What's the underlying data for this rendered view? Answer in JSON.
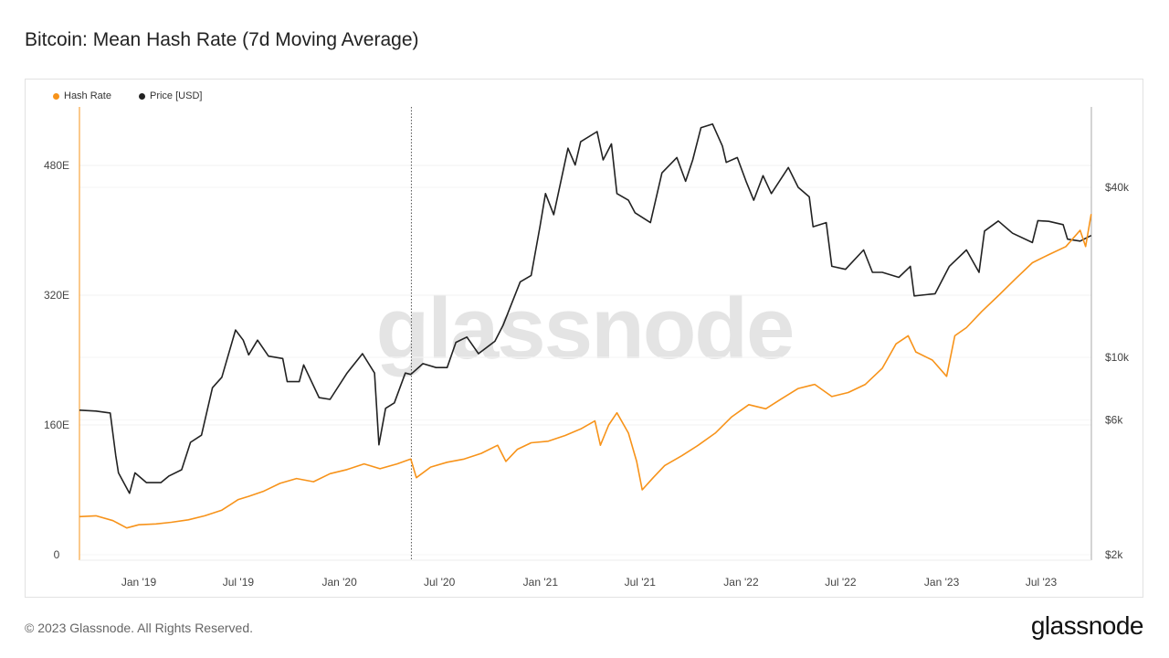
{
  "title": "Bitcoin: Mean Hash Rate (7d Moving Average)",
  "footer": "© 2023 Glassnode. All Rights Reserved.",
  "logo": "glassnode",
  "watermark": "glassnode",
  "chart_data": {
    "type": "line",
    "title": "Bitcoin: Mean Hash Rate (7d Moving Average)",
    "legend_position": "top-left",
    "grid": true,
    "x_range": [
      "2018-09-14",
      "2023-09-30"
    ],
    "x_ticks": [
      {
        "date": "2019-01-01",
        "label": "Jan '19"
      },
      {
        "date": "2019-07-01",
        "label": "Jul '19"
      },
      {
        "date": "2020-01-01",
        "label": "Jan '20"
      },
      {
        "date": "2020-07-01",
        "label": "Jul '20"
      },
      {
        "date": "2021-01-01",
        "label": "Jan '21"
      },
      {
        "date": "2021-07-01",
        "label": "Jul '21"
      },
      {
        "date": "2022-01-01",
        "label": "Jan '22"
      },
      {
        "date": "2022-07-01",
        "label": "Jul '22"
      },
      {
        "date": "2023-01-01",
        "label": "Jan '23"
      },
      {
        "date": "2023-07-01",
        "label": "Jul '23"
      }
    ],
    "marker_line_date": "2020-05-11",
    "left_axis": {
      "scale": "linear",
      "ticks": [
        {
          "v": 0,
          "label": "0"
        },
        {
          "v": 160,
          "label": "160E"
        },
        {
          "v": 320,
          "label": "320E"
        },
        {
          "v": 480,
          "label": "480E"
        }
      ]
    },
    "right_axis": {
      "scale": "log",
      "ticks": [
        {
          "v": 2000,
          "label": "$2k"
        },
        {
          "v": 6000,
          "label": "$6k"
        },
        {
          "v": 10000,
          "label": "$10k"
        },
        {
          "v": 40000,
          "label": "$40k"
        }
      ]
    },
    "series": [
      {
        "name": "Hash Rate",
        "color": "#f7931a",
        "axis": "left",
        "points": [
          [
            "2018-09-15",
            47
          ],
          [
            "2018-10-15",
            48
          ],
          [
            "2018-11-15",
            42
          ],
          [
            "2018-12-10",
            33
          ],
          [
            "2019-01-01",
            37
          ],
          [
            "2019-02-01",
            38
          ],
          [
            "2019-03-01",
            40
          ],
          [
            "2019-04-01",
            43
          ],
          [
            "2019-05-01",
            48
          ],
          [
            "2019-06-01",
            55
          ],
          [
            "2019-07-01",
            68
          ],
          [
            "2019-07-20",
            72
          ],
          [
            "2019-08-15",
            78
          ],
          [
            "2019-09-15",
            88
          ],
          [
            "2019-10-15",
            94
          ],
          [
            "2019-11-15",
            90
          ],
          [
            "2019-12-15",
            100
          ],
          [
            "2020-01-15",
            105
          ],
          [
            "2020-02-15",
            112
          ],
          [
            "2020-03-15",
            106
          ],
          [
            "2020-04-15",
            112
          ],
          [
            "2020-05-10",
            118
          ],
          [
            "2020-05-20",
            95
          ],
          [
            "2020-06-15",
            108
          ],
          [
            "2020-07-15",
            114
          ],
          [
            "2020-08-15",
            118
          ],
          [
            "2020-09-15",
            125
          ],
          [
            "2020-10-15",
            135
          ],
          [
            "2020-10-30",
            115
          ],
          [
            "2020-11-20",
            130
          ],
          [
            "2020-12-15",
            138
          ],
          [
            "2021-01-15",
            140
          ],
          [
            "2021-02-15",
            147
          ],
          [
            "2021-03-15",
            155
          ],
          [
            "2021-04-10",
            165
          ],
          [
            "2021-04-20",
            135
          ],
          [
            "2021-05-05",
            160
          ],
          [
            "2021-05-20",
            175
          ],
          [
            "2021-06-10",
            150
          ],
          [
            "2021-06-25",
            115
          ],
          [
            "2021-07-05",
            80
          ],
          [
            "2021-07-25",
            95
          ],
          [
            "2021-08-15",
            110
          ],
          [
            "2021-09-15",
            122
          ],
          [
            "2021-10-15",
            135
          ],
          [
            "2021-11-15",
            150
          ],
          [
            "2021-12-15",
            170
          ],
          [
            "2022-01-15",
            185
          ],
          [
            "2022-02-15",
            180
          ],
          [
            "2022-03-15",
            192
          ],
          [
            "2022-04-15",
            205
          ],
          [
            "2022-05-15",
            210
          ],
          [
            "2022-06-15",
            195
          ],
          [
            "2022-07-15",
            200
          ],
          [
            "2022-08-15",
            210
          ],
          [
            "2022-09-15",
            230
          ],
          [
            "2022-10-10",
            260
          ],
          [
            "2022-11-01",
            270
          ],
          [
            "2022-11-15",
            250
          ],
          [
            "2022-12-15",
            240
          ],
          [
            "2023-01-10",
            220
          ],
          [
            "2023-01-25",
            270
          ],
          [
            "2023-02-15",
            280
          ],
          [
            "2023-03-15",
            300
          ],
          [
            "2023-04-15",
            320
          ],
          [
            "2023-05-15",
            340
          ],
          [
            "2023-06-15",
            360
          ],
          [
            "2023-07-15",
            370
          ],
          [
            "2023-08-15",
            380
          ],
          [
            "2023-09-10",
            400
          ],
          [
            "2023-09-20",
            380
          ],
          [
            "2023-09-30",
            420
          ]
        ]
      },
      {
        "name": "Price [USD]",
        "color": "#222222",
        "axis": "right",
        "points": [
          [
            "2018-09-15",
            6500
          ],
          [
            "2018-10-15",
            6450
          ],
          [
            "2018-11-10",
            6350
          ],
          [
            "2018-11-20",
            4500
          ],
          [
            "2018-11-25",
            3900
          ],
          [
            "2018-12-15",
            3300
          ],
          [
            "2018-12-25",
            3900
          ],
          [
            "2019-01-15",
            3600
          ],
          [
            "2019-02-10",
            3600
          ],
          [
            "2019-02-25",
            3800
          ],
          [
            "2019-03-20",
            4000
          ],
          [
            "2019-04-05",
            5000
          ],
          [
            "2019-04-25",
            5300
          ],
          [
            "2019-05-15",
            7800
          ],
          [
            "2019-06-01",
            8500
          ],
          [
            "2019-06-26",
            12500
          ],
          [
            "2019-07-10",
            11500
          ],
          [
            "2019-07-20",
            10200
          ],
          [
            "2019-08-05",
            11500
          ],
          [
            "2019-08-25",
            10100
          ],
          [
            "2019-09-20",
            9900
          ],
          [
            "2019-09-28",
            8200
          ],
          [
            "2019-10-20",
            8200
          ],
          [
            "2019-10-28",
            9400
          ],
          [
            "2019-11-25",
            7200
          ],
          [
            "2019-12-15",
            7100
          ],
          [
            "2020-01-15",
            8800
          ],
          [
            "2020-02-12",
            10300
          ],
          [
            "2020-03-05",
            8800
          ],
          [
            "2020-03-13",
            4900
          ],
          [
            "2020-03-25",
            6600
          ],
          [
            "2020-04-10",
            6900
          ],
          [
            "2020-04-30",
            8800
          ],
          [
            "2020-05-10",
            8700
          ],
          [
            "2020-06-01",
            9500
          ],
          [
            "2020-06-25",
            9200
          ],
          [
            "2020-07-15",
            9200
          ],
          [
            "2020-07-31",
            11300
          ],
          [
            "2020-08-20",
            11800
          ],
          [
            "2020-09-10",
            10300
          ],
          [
            "2020-10-10",
            11400
          ],
          [
            "2020-10-25",
            13000
          ],
          [
            "2020-11-25",
            18500
          ],
          [
            "2020-12-15",
            19500
          ],
          [
            "2020-12-31",
            29000
          ],
          [
            "2021-01-10",
            38000
          ],
          [
            "2021-01-25",
            32000
          ],
          [
            "2021-02-20",
            55000
          ],
          [
            "2021-03-05",
            48000
          ],
          [
            "2021-03-15",
            58000
          ],
          [
            "2021-04-14",
            63000
          ],
          [
            "2021-04-25",
            50000
          ],
          [
            "2021-05-10",
            57000
          ],
          [
            "2021-05-20",
            38000
          ],
          [
            "2021-06-10",
            36000
          ],
          [
            "2021-06-22",
            32500
          ],
          [
            "2021-07-20",
            30000
          ],
          [
            "2021-08-10",
            45000
          ],
          [
            "2021-09-06",
            51000
          ],
          [
            "2021-09-22",
            42000
          ],
          [
            "2021-10-05",
            50000
          ],
          [
            "2021-10-20",
            65000
          ],
          [
            "2021-11-10",
            67000
          ],
          [
            "2021-11-28",
            56000
          ],
          [
            "2021-12-05",
            49000
          ],
          [
            "2021-12-25",
            51000
          ],
          [
            "2022-01-10",
            42000
          ],
          [
            "2022-01-24",
            36000
          ],
          [
            "2022-02-10",
            44000
          ],
          [
            "2022-02-25",
            38000
          ],
          [
            "2022-03-28",
            47000
          ],
          [
            "2022-04-15",
            40000
          ],
          [
            "2022-05-05",
            37000
          ],
          [
            "2022-05-12",
            29000
          ],
          [
            "2022-06-05",
            30000
          ],
          [
            "2022-06-15",
            21000
          ],
          [
            "2022-07-10",
            20500
          ],
          [
            "2022-08-12",
            24000
          ],
          [
            "2022-08-28",
            20000
          ],
          [
            "2022-09-15",
            20000
          ],
          [
            "2022-10-15",
            19200
          ],
          [
            "2022-11-05",
            21000
          ],
          [
            "2022-11-12",
            16500
          ],
          [
            "2022-12-20",
            16800
          ],
          [
            "2023-01-15",
            21000
          ],
          [
            "2023-02-15",
            24000
          ],
          [
            "2023-03-10",
            20000
          ],
          [
            "2023-03-20",
            28000
          ],
          [
            "2023-04-14",
            30400
          ],
          [
            "2023-05-10",
            27500
          ],
          [
            "2023-06-15",
            25500
          ],
          [
            "2023-06-25",
            30500
          ],
          [
            "2023-07-15",
            30300
          ],
          [
            "2023-08-10",
            29500
          ],
          [
            "2023-08-18",
            26200
          ],
          [
            "2023-09-10",
            25800
          ],
          [
            "2023-09-30",
            27000
          ]
        ]
      }
    ]
  }
}
